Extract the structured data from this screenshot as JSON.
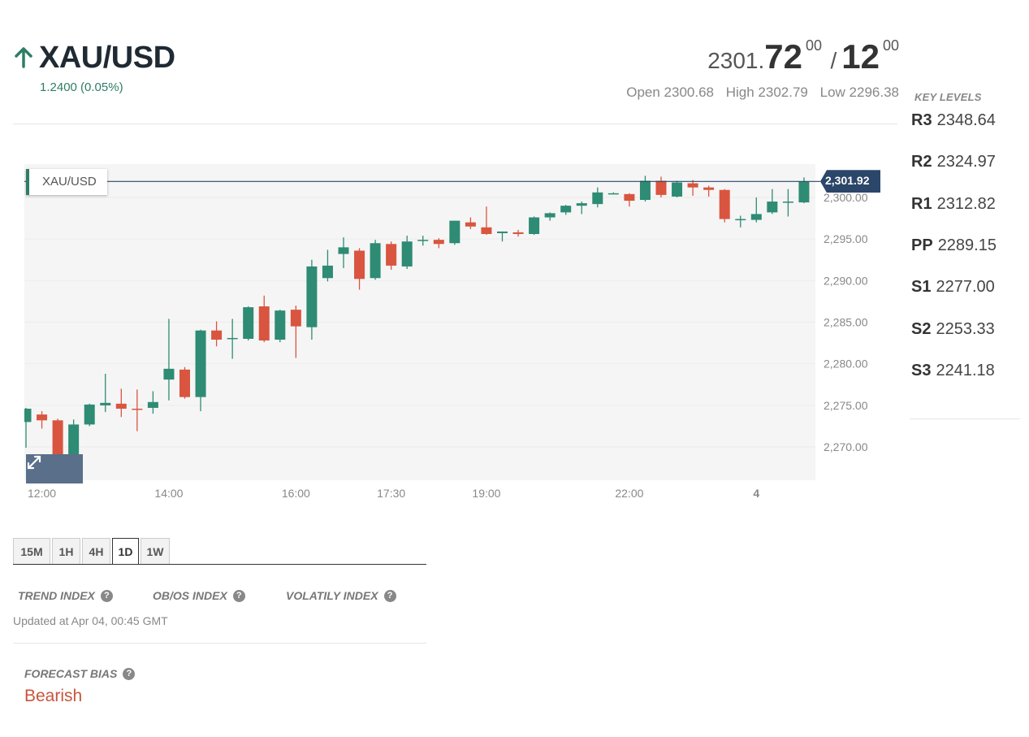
{
  "header": {
    "symbol": "XAU/USD",
    "change": "1.2400 (0.05%)",
    "direction_icon": "arrow-up-icon",
    "bid_prefix": "2301.",
    "bid_big": "72",
    "bid_sup": "00",
    "slash": "/",
    "ask_big": "12",
    "ask_sup": "00",
    "open": "Open 2300.68",
    "high": "High 2302.79",
    "low": "Low 2296.38"
  },
  "key_levels": {
    "title": "KEY LEVELS",
    "levels": [
      {
        "label": "R3",
        "value": "2348.64"
      },
      {
        "label": "R2",
        "value": "2324.97"
      },
      {
        "label": "R1",
        "value": "2312.82"
      },
      {
        "label": "PP",
        "value": "2289.15"
      },
      {
        "label": "S1",
        "value": "2277.00"
      },
      {
        "label": "S2",
        "value": "2253.33"
      },
      {
        "label": "S3",
        "value": "2241.18"
      }
    ]
  },
  "chart": {
    "tag": "XAU/USD",
    "current_price_label": "2,301.92",
    "current_price": 2301.92,
    "expand_icon": "expand-icon"
  },
  "chart_data": {
    "type": "candlestick",
    "symbol": "XAU/USD",
    "ylim": [
      2266,
      2304
    ],
    "y_ticks": [
      "2,270.00",
      "2,275.00",
      "2,280.00",
      "2,285.00",
      "2,290.00",
      "2,295.00",
      "2,300.00"
    ],
    "y_tick_values": [
      2270,
      2275,
      2280,
      2285,
      2290,
      2295,
      2300
    ],
    "x_ticks": [
      "12:00",
      "14:00",
      "16:00",
      "17:30",
      "19:00",
      "22:00",
      "4"
    ],
    "x_tick_index": [
      1,
      9,
      17,
      23,
      29,
      38,
      46
    ],
    "colors": {
      "up": "#2e8b74",
      "down": "#d9553f",
      "line": "#2b4669"
    },
    "candles": [
      {
        "o": 2273.0,
        "h": 2274.7,
        "l": 2269.9,
        "c": 2274.6
      },
      {
        "o": 2273.9,
        "h": 2274.3,
        "l": 2272.2,
        "c": 2273.2
      },
      {
        "o": 2273.2,
        "h": 2273.4,
        "l": 2268.2,
        "c": 2268.8
      },
      {
        "o": 2268.8,
        "h": 2273.3,
        "l": 2268.6,
        "c": 2272.7
      },
      {
        "o": 2272.7,
        "h": 2275.2,
        "l": 2272.5,
        "c": 2275.1
      },
      {
        "o": 2275.0,
        "h": 2278.8,
        "l": 2274.2,
        "c": 2275.3
      },
      {
        "o": 2275.2,
        "h": 2277.0,
        "l": 2273.6,
        "c": 2274.6
      },
      {
        "o": 2274.6,
        "h": 2276.9,
        "l": 2271.9,
        "c": 2274.5
      },
      {
        "o": 2274.7,
        "h": 2276.7,
        "l": 2274.0,
        "c": 2275.4
      },
      {
        "o": 2278.1,
        "h": 2285.4,
        "l": 2275.6,
        "c": 2279.4
      },
      {
        "o": 2279.3,
        "h": 2279.6,
        "l": 2275.8,
        "c": 2276.0
      },
      {
        "o": 2276.0,
        "h": 2284.1,
        "l": 2274.3,
        "c": 2284.0
      },
      {
        "o": 2284.0,
        "h": 2285.1,
        "l": 2282.1,
        "c": 2282.9
      },
      {
        "o": 2283.0,
        "h": 2285.4,
        "l": 2280.6,
        "c": 2283.1
      },
      {
        "o": 2283.0,
        "h": 2286.9,
        "l": 2282.8,
        "c": 2286.8
      },
      {
        "o": 2286.9,
        "h": 2288.2,
        "l": 2282.6,
        "c": 2282.8
      },
      {
        "o": 2282.9,
        "h": 2286.5,
        "l": 2282.6,
        "c": 2286.4
      },
      {
        "o": 2286.5,
        "h": 2287.0,
        "l": 2280.7,
        "c": 2284.5
      },
      {
        "o": 2284.4,
        "h": 2292.5,
        "l": 2282.9,
        "c": 2291.7
      },
      {
        "o": 2290.3,
        "h": 2293.7,
        "l": 2289.9,
        "c": 2291.8
      },
      {
        "o": 2293.2,
        "h": 2295.2,
        "l": 2291.5,
        "c": 2294.0
      },
      {
        "o": 2293.6,
        "h": 2293.9,
        "l": 2288.9,
        "c": 2290.2
      },
      {
        "o": 2290.3,
        "h": 2294.9,
        "l": 2290.1,
        "c": 2294.5
      },
      {
        "o": 2294.4,
        "h": 2294.7,
        "l": 2291.3,
        "c": 2291.8
      },
      {
        "o": 2291.7,
        "h": 2295.4,
        "l": 2291.4,
        "c": 2294.7
      },
      {
        "o": 2294.9,
        "h": 2295.4,
        "l": 2294.2,
        "c": 2294.9
      },
      {
        "o": 2294.9,
        "h": 2295.1,
        "l": 2293.9,
        "c": 2294.4
      },
      {
        "o": 2294.5,
        "h": 2297.2,
        "l": 2294.3,
        "c": 2297.2
      },
      {
        "o": 2297.0,
        "h": 2297.6,
        "l": 2296.2,
        "c": 2296.5
      },
      {
        "o": 2296.4,
        "h": 2298.9,
        "l": 2295.5,
        "c": 2295.6
      },
      {
        "o": 2295.7,
        "h": 2295.9,
        "l": 2294.7,
        "c": 2295.9
      },
      {
        "o": 2295.8,
        "h": 2296.1,
        "l": 2295.3,
        "c": 2295.6
      },
      {
        "o": 2295.6,
        "h": 2297.7,
        "l": 2295.5,
        "c": 2297.6
      },
      {
        "o": 2297.6,
        "h": 2298.2,
        "l": 2297.2,
        "c": 2298.1
      },
      {
        "o": 2298.2,
        "h": 2299.1,
        "l": 2297.9,
        "c": 2299.0
      },
      {
        "o": 2299.0,
        "h": 2299.5,
        "l": 2298.0,
        "c": 2299.3
      },
      {
        "o": 2299.2,
        "h": 2301.2,
        "l": 2298.8,
        "c": 2300.6
      },
      {
        "o": 2300.5,
        "h": 2300.6,
        "l": 2300.4,
        "c": 2300.5
      },
      {
        "o": 2300.4,
        "h": 2300.5,
        "l": 2298.9,
        "c": 2299.6
      },
      {
        "o": 2299.7,
        "h": 2302.6,
        "l": 2299.5,
        "c": 2302.0
      },
      {
        "o": 2302.0,
        "h": 2302.5,
        "l": 2300.0,
        "c": 2300.3
      },
      {
        "o": 2300.1,
        "h": 2302.0,
        "l": 2300.0,
        "c": 2301.8
      },
      {
        "o": 2301.7,
        "h": 2302.1,
        "l": 2300.2,
        "c": 2301.2
      },
      {
        "o": 2301.2,
        "h": 2301.4,
        "l": 2300.1,
        "c": 2300.9
      },
      {
        "o": 2300.9,
        "h": 2301.0,
        "l": 2297.0,
        "c": 2297.4
      },
      {
        "o": 2297.4,
        "h": 2297.8,
        "l": 2296.4,
        "c": 2297.4
      },
      {
        "o": 2297.3,
        "h": 2300.0,
        "l": 2297.0,
        "c": 2298.0
      },
      {
        "o": 2298.2,
        "h": 2301.0,
        "l": 2298.0,
        "c": 2299.5
      },
      {
        "o": 2299.4,
        "h": 2301.0,
        "l": 2297.7,
        "c": 2299.5
      },
      {
        "o": 2299.4,
        "h": 2302.4,
        "l": 2299.3,
        "c": 2301.9
      }
    ]
  },
  "timeframes": {
    "options": [
      "15M",
      "1H",
      "4H",
      "1D",
      "1W"
    ],
    "active": "1D"
  },
  "indices": {
    "trend": "TREND INDEX",
    "obos": "OB/OS INDEX",
    "volatility": "VOLATILY INDEX",
    "help_icon": "?",
    "updated": "Updated at Apr 04, 00:45 GMT"
  },
  "forecast": {
    "label": "FORECAST BIAS",
    "value": "Bearish",
    "value_color": "#c8553d"
  }
}
